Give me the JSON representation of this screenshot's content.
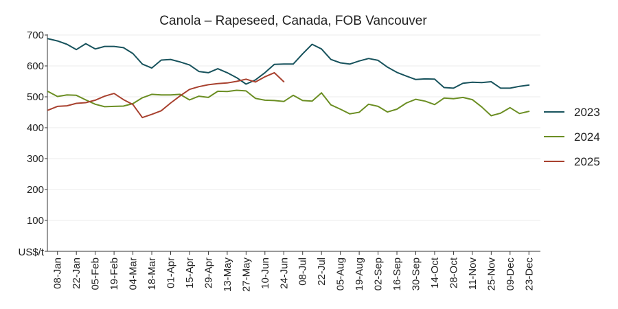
{
  "chart_data": {
    "type": "line",
    "title": "Canola – Rapeseed, Canada, FOB Vancouver",
    "ylabel": "US$/t",
    "xlabel": "",
    "ylim": [
      0,
      700
    ],
    "yticks": [
      100,
      200,
      300,
      400,
      500,
      600,
      700
    ],
    "x_tick_labels": [
      "08-Jan",
      "22-Jan",
      "05-Feb",
      "19-Feb",
      "04-Mar",
      "18-Mar",
      "01-Apr",
      "15-Apr",
      "29-Apr",
      "13-May",
      "27-May",
      "10-Jun",
      "24-Jun",
      "08-Jul",
      "22-Jul",
      "05-Aug",
      "19-Aug",
      "02-Sep",
      "16-Sep",
      "30-Sep",
      "14-Oct",
      "28-Oct",
      "11-Nov",
      "25-Nov",
      "09-Dec",
      "23-Dec"
    ],
    "x_week_count": 53,
    "grid": "horizontal",
    "legend_position": "right",
    "series": [
      {
        "name": "2023",
        "color": "#17525c",
        "values": [
          688,
          681,
          670,
          653,
          672,
          655,
          663,
          663,
          659,
          640,
          606,
          593,
          619,
          621,
          613,
          603,
          582,
          578,
          591,
          578,
          562,
          541,
          555,
          578,
          605,
          606,
          606,
          639,
          670,
          655,
          621,
          610,
          606,
          616,
          624,
          618,
          596,
          579,
          567,
          556,
          558,
          557,
          530,
          528,
          544,
          547,
          546,
          549,
          528,
          528,
          534,
          538
        ]
      },
      {
        "name": "2024",
        "color": "#6b8e23",
        "values": [
          517,
          501,
          506,
          505,
          490,
          476,
          468,
          469,
          470,
          478,
          497,
          508,
          506,
          506,
          508,
          490,
          502,
          498,
          518,
          517,
          521,
          519,
          495,
          489,
          488,
          485,
          505,
          488,
          486,
          513,
          474,
          460,
          445,
          450,
          476,
          469,
          451,
          460,
          480,
          492,
          486,
          475,
          496,
          494,
          498,
          491,
          467,
          439,
          447,
          465,
          446,
          453
        ]
      },
      {
        "name": "2025",
        "color": "#a8412f",
        "values": [
          457,
          469,
          471,
          479,
          481,
          489,
          502,
          511,
          491,
          475,
          433,
          443,
          455,
          480,
          503,
          524,
          533,
          539,
          543,
          545,
          550,
          557,
          548,
          565,
          578,
          549
        ]
      }
    ]
  }
}
